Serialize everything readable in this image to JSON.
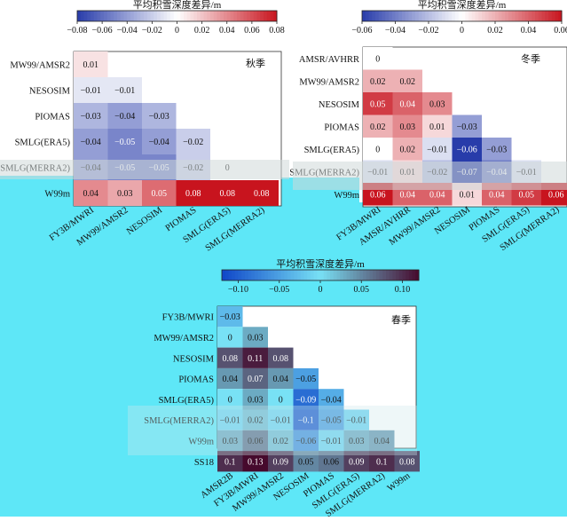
{
  "chart_data": [
    {
      "type": "heatmap",
      "title": "秋季",
      "colorbar": {
        "title": "平均积雪深度差异/m",
        "ticks": [
          "−0.08",
          "−0.06",
          "−0.04",
          "−0.02",
          "0",
          "0.02",
          "0.04",
          "0.06",
          "0.08"
        ],
        "range": [
          -0.08,
          0.08
        ],
        "colormap": "blue-white-red"
      },
      "row_labels": [
        "MW99/AMSR2",
        "NESOSIM",
        "PIOMAS",
        "SMLG(ERA5)",
        "SMLG(MERRA2)",
        "W99m"
      ],
      "col_labels": [
        "FY3B/MWRI",
        "MW99/AMSR2",
        "NESOSIM",
        "PIOMAS",
        "SMLG(ERA5)",
        "SMLG(MERRA2)"
      ],
      "values": [
        [
          0.01
        ],
        [
          -0.01,
          -0.01
        ],
        [
          -0.03,
          -0.04,
          -0.03
        ],
        [
          -0.04,
          -0.05,
          -0.04,
          -0.02
        ],
        [
          -0.04,
          -0.05,
          -0.05,
          -0.02,
          0
        ],
        [
          0.04,
          0.03,
          0.05,
          0.08,
          0.08,
          0.08
        ]
      ],
      "display": [
        [
          "0.01"
        ],
        [
          "−0.01",
          "−0.01"
        ],
        [
          "−0.03",
          "−0.04",
          "−0.03"
        ],
        [
          "−0.04",
          "−0.05",
          "−0.04",
          "−0.02"
        ],
        [
          "−0.04",
          "−0.05",
          "−0.05",
          "−0.02",
          "0"
        ],
        [
          "0.04",
          "0.03",
          "0.05",
          "0.08",
          "0.08",
          "0.08"
        ]
      ]
    },
    {
      "type": "heatmap",
      "title": "冬季",
      "colorbar": {
        "title": "平均积雪深度差异/m",
        "ticks": [
          "−0.06",
          "−0.04",
          "−0.02",
          "0",
          "0.02",
          "0.04",
          "0.06"
        ],
        "range": [
          -0.06,
          0.06
        ],
        "colormap": "blue-white-red"
      },
      "row_labels": [
        "AMSR/AVHRR",
        "MW99/AMSR2",
        "NESOSIM",
        "PIOMAS",
        "SMLG(ERA5)",
        "SMLG(MERRA2)",
        "W99m"
      ],
      "col_labels": [
        "FY3B/MWRI",
        "AMSR/AVHRR",
        "MW99/AMSR2",
        "NESOSIM",
        "PIOMAS",
        "SMLG(ERA5)",
        "SMLG(MERRA2)"
      ],
      "values": [
        [
          0
        ],
        [
          0.02,
          0.02
        ],
        [
          0.05,
          0.04,
          0.03
        ],
        [
          0.02,
          0.03,
          0.01,
          -0.03
        ],
        [
          0,
          0.02,
          -0.01,
          -0.06,
          -0.03
        ],
        [
          -0.01,
          0.01,
          -0.02,
          -0.07,
          -0.04,
          -0.01
        ],
        [
          0.06,
          0.04,
          0.04,
          0.01,
          0.04,
          0.05,
          0.06
        ]
      ],
      "display": [
        [
          "0"
        ],
        [
          "0.02",
          "0.02"
        ],
        [
          "0.05",
          "0.04",
          "0.03"
        ],
        [
          "0.02",
          "0.03",
          "0.01",
          "−0.03"
        ],
        [
          "0",
          "0.02",
          "−0.01",
          "−0.06",
          "−0.03"
        ],
        [
          "−0.01",
          "0.01",
          "−0.02",
          "−0.07",
          "−0.04",
          "−0.01"
        ],
        [
          "0.06",
          "0.04",
          "0.04",
          "0.01",
          "0.04",
          "0.05",
          "0.06"
        ]
      ]
    },
    {
      "type": "heatmap",
      "title": "春季",
      "colorbar": {
        "title": "平均积雪深度差异/m",
        "ticks": [
          "−0.10",
          "−0.05",
          "0",
          "0.05",
          "0.10"
        ],
        "range": [
          -0.12,
          0.12
        ],
        "colormap": "blue-cyan-purple"
      },
      "row_labels": [
        "FY3B/MWRI",
        "MW99/AMSR2",
        "NESOSIM",
        "PIOMAS",
        "SMLG(ERA5)",
        "SMLG(MERRA2)",
        "W99m",
        "SS18"
      ],
      "col_labels": [
        "AMSR2B",
        "FY3B/MWRI",
        "MW99/AMSR2",
        "NESOSIM",
        "PIOMAS",
        "SMLG(ERA5)",
        "SMLG(MERRA2)",
        "W99m"
      ],
      "values": [
        [
          -0.03
        ],
        [
          0,
          0.03
        ],
        [
          0.08,
          0.11,
          0.08
        ],
        [
          0.04,
          0.07,
          0.04,
          -0.05
        ],
        [
          0,
          0.03,
          0,
          -0.09,
          -0.04
        ],
        [
          -0.01,
          0.02,
          -0.01,
          -0.1,
          -0.05,
          -0.01
        ],
        [
          0.03,
          0.06,
          0.02,
          -0.06,
          -0.01,
          0.03,
          0.04
        ],
        [
          0.1,
          0.13,
          0.09,
          0.05,
          0.06,
          0.09,
          0.1,
          0.08
        ]
      ],
      "display": [
        [
          "−0.03"
        ],
        [
          "0",
          "0.03"
        ],
        [
          "0.08",
          "0.11",
          "0.08"
        ],
        [
          "0.04",
          "0.07",
          "0.04",
          "−0.05"
        ],
        [
          "0",
          "0.03",
          "0",
          "−0.09",
          "−0.04"
        ],
        [
          "−0.01",
          "0.02",
          "−0.01",
          "−0.1",
          "−0.05",
          "−0.01"
        ],
        [
          "0.03",
          "0.06",
          "0.02",
          "−0.06",
          "−0.01",
          "0.03",
          "0.04"
        ],
        [
          "0.1",
          "0.13",
          "0.09",
          "0.05",
          "0.06",
          "0.09",
          "0.1",
          "0.08"
        ]
      ]
    }
  ]
}
